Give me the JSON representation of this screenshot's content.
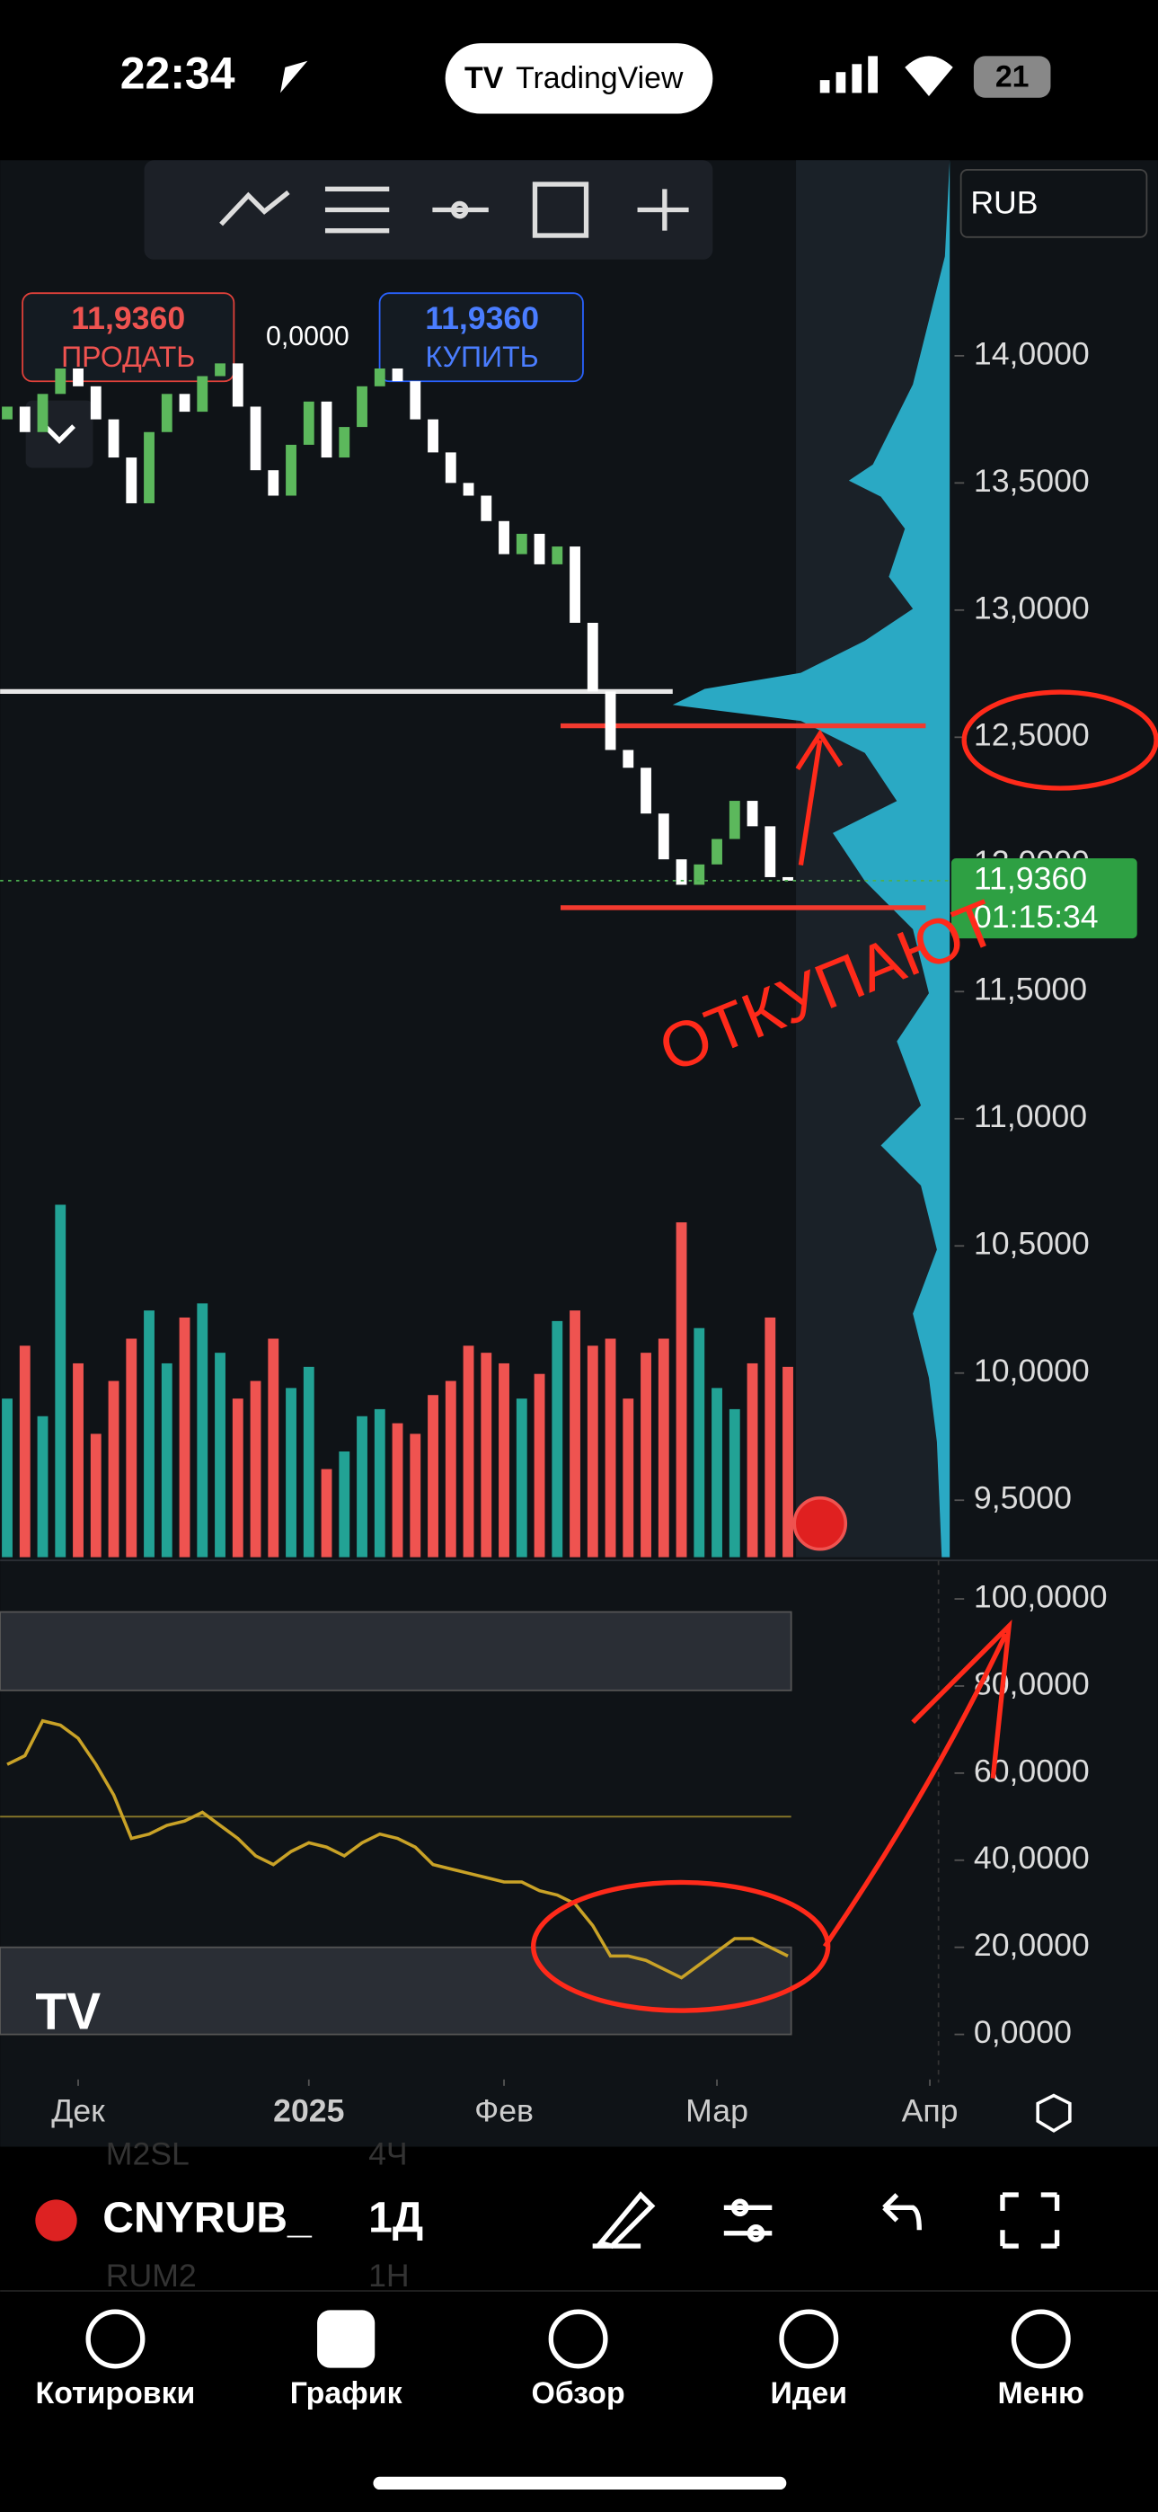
{
  "status_bar": {
    "time": "22:34",
    "app": "TradingView",
    "battery": "21"
  },
  "trade_panel": {
    "sell_price": "11,9360",
    "sell_label": "ПРОДАТЬ",
    "spread": "0,0000",
    "buy_price": "11,9360",
    "buy_label": "КУПИТЬ"
  },
  "currency": "RUB",
  "chart_data": {
    "type": "candlestick",
    "open": [
      13.75,
      13.8,
      13.7,
      13.85,
      13.95,
      13.88,
      13.75,
      13.6,
      13.42,
      13.7,
      13.85,
      13.78,
      13.92,
      13.97,
      13.8,
      13.55,
      13.45,
      13.65,
      13.82,
      13.6,
      13.72,
      13.88,
      13.95,
      13.9,
      13.75,
      13.62,
      13.5,
      13.45,
      13.35,
      13.22,
      13.3,
      13.18,
      13.25,
      12.95,
      12.68,
      12.45,
      12.38,
      12.2,
      12.02,
      11.92,
      12.0,
      12.1,
      12.25,
      12.15,
      11.95
    ],
    "close": [
      13.8,
      13.7,
      13.85,
      13.95,
      13.88,
      13.75,
      13.6,
      13.42,
      13.7,
      13.85,
      13.78,
      13.92,
      13.97,
      13.8,
      13.55,
      13.45,
      13.65,
      13.82,
      13.6,
      13.72,
      13.88,
      13.95,
      13.9,
      13.75,
      13.62,
      13.5,
      13.45,
      13.35,
      13.22,
      13.3,
      13.18,
      13.25,
      12.95,
      12.68,
      12.45,
      12.38,
      12.2,
      12.02,
      11.92,
      12.0,
      12.1,
      12.25,
      12.15,
      11.95,
      11.936
    ],
    "up_color": "#5cb85c",
    "down_color": "#ffffff",
    "xlim": [
      -0.4,
      53.3
    ],
    "xticks": [
      {
        "value": 4,
        "label": "Дек"
      },
      {
        "value": 17,
        "label": "2025"
      },
      {
        "value": 28,
        "label": "Фев"
      },
      {
        "value": 40,
        "label": "Мар"
      },
      {
        "value": 52,
        "label": "Апр"
      }
    ],
    "ylim": [
      9.276,
      14.769
    ],
    "yticks": [
      {
        "value": 14,
        "label": "14,0000"
      },
      {
        "value": 13.5,
        "label": "13,5000"
      },
      {
        "value": 13,
        "label": "13,0000"
      },
      {
        "value": 12.5,
        "label": "12,5000"
      },
      {
        "value": 12,
        "label": "12,0000"
      },
      {
        "value": 11.5,
        "label": "11,5000"
      },
      {
        "value": 11,
        "label": "11,0000"
      },
      {
        "value": 10.5,
        "label": "10,5000"
      },
      {
        "value": 10,
        "label": "10,0000"
      },
      {
        "value": 9.5,
        "label": "9,5000"
      }
    ],
    "last_price": {
      "value": 11.936,
      "label": "11,9360"
    },
    "countdown": "01:15:34",
    "hlines": [
      {
        "value": 12.68,
        "color": "#e8e8e8"
      },
      {
        "value": 12.545,
        "color": "#f23a2f"
      },
      {
        "value": 11.83,
        "color": "#f23a2f"
      }
    ],
    "volume": {
      "values": [
        45,
        60,
        40,
        100,
        55,
        35,
        50,
        62,
        70,
        55,
        68,
        72,
        58,
        45,
        50,
        62,
        48,
        54,
        25,
        30,
        40,
        42,
        38,
        35,
        46,
        50,
        60,
        58,
        55,
        45,
        52,
        67,
        70,
        60,
        62,
        45,
        58,
        62,
        95,
        65,
        48,
        42,
        55,
        68,
        54
      ],
      "up_color": "#22a295",
      "down_color": "#ef5350"
    },
    "oscillator": {
      "values": [
        62,
        64,
        72,
        71,
        68,
        62,
        55,
        45,
        46,
        48,
        49,
        51,
        48,
        45,
        41,
        39,
        42,
        44,
        43,
        41,
        44,
        46,
        45,
        43,
        39,
        38,
        37,
        36,
        35,
        35,
        33,
        32,
        30,
        25,
        18,
        18,
        17,
        15,
        13,
        16,
        19,
        22,
        22,
        20,
        18
      ],
      "color": "#c9a227",
      "ylim": [
        -7.4,
        104.8
      ],
      "yticks": [
        {
          "value": 100,
          "label": "100,0000"
        },
        {
          "value": 80,
          "label": "80,0000"
        },
        {
          "value": 60,
          "label": "60,0000"
        },
        {
          "value": 40,
          "label": "40,0000"
        },
        {
          "value": 20,
          "label": "20,0000"
        },
        {
          "value": 0,
          "label": "0,0000"
        }
      ],
      "level": 50,
      "bands": [
        [
          0,
          20
        ],
        [
          79,
          97
        ]
      ]
    },
    "annotation": "ОТКУПАЮТ"
  },
  "toolbar": {
    "symbol": "CNYRUB_",
    "interval": "1Д",
    "ghost": [
      "M2SL",
      "4Ч",
      "RUM2",
      "1H"
    ]
  },
  "nav": [
    "Котировки",
    "График",
    "Обзор",
    "Идеи",
    "Меню"
  ]
}
